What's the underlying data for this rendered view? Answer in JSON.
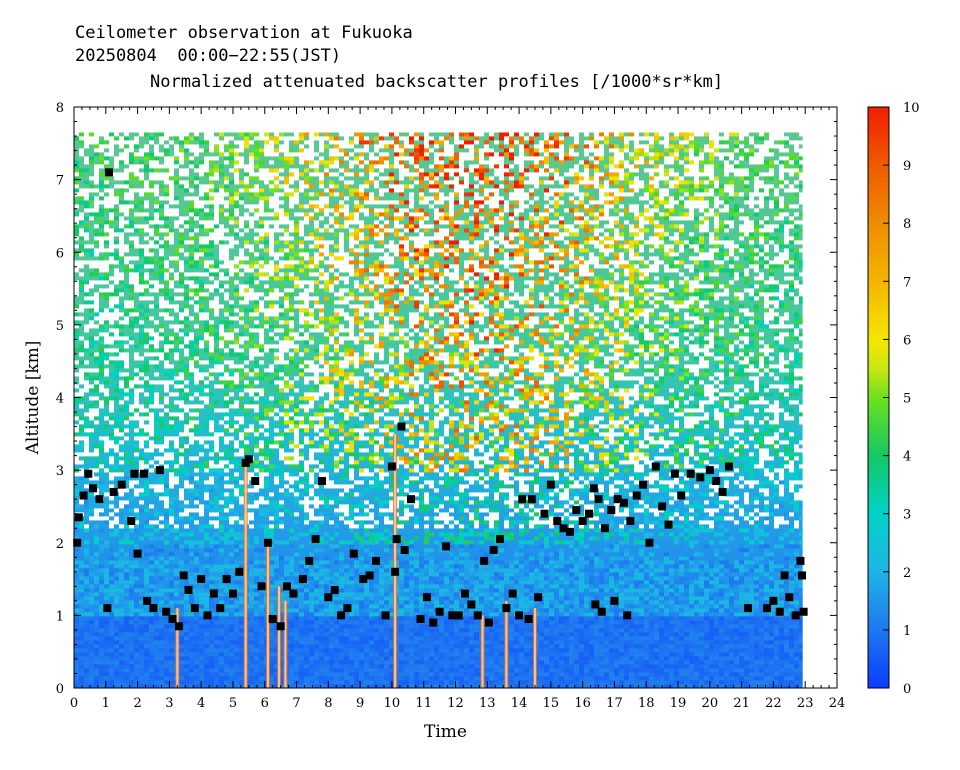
{
  "chart_data": {
    "type": "heatmap",
    "title_lines": [
      "Ceilometer observation at Fukuoka",
      "20250804  00:00−22:55(JST)"
    ],
    "subtitle": "Normalized attenuated backscatter profiles [/1000*sr*km]",
    "xlabel": "Time",
    "ylabel": "Altitude [km]",
    "xlim": [
      0,
      24
    ],
    "ylim": [
      0,
      8
    ],
    "data_time_range": [
      0,
      22.92
    ],
    "data_max_altitude": 7.65,
    "x_ticks": [
      "0",
      "1",
      "2",
      "3",
      "4",
      "5",
      "6",
      "7",
      "8",
      "9",
      "10",
      "11",
      "12",
      "13",
      "14",
      "15",
      "16",
      "17",
      "18",
      "19",
      "20",
      "21",
      "22",
      "23",
      "24"
    ],
    "y_ticks": [
      "0",
      "1",
      "2",
      "3",
      "4",
      "5",
      "6",
      "7",
      "8"
    ],
    "colorbar": {
      "range": [
        0,
        10
      ],
      "ticks": [
        "0",
        "1",
        "2",
        "3",
        "4",
        "5",
        "6",
        "7",
        "8",
        "9",
        "10"
      ],
      "stops": [
        {
          "value": 0,
          "color": "#0a3cff"
        },
        {
          "value": 1,
          "color": "#1f78f0"
        },
        {
          "value": 2,
          "color": "#1fb4e6"
        },
        {
          "value": 3,
          "color": "#00d2c8"
        },
        {
          "value": 4,
          "color": "#14c864"
        },
        {
          "value": 5,
          "color": "#6ee01e"
        },
        {
          "value": 5.5,
          "color": "#c8e614"
        },
        {
          "value": 6,
          "color": "#f5e600"
        },
        {
          "value": 7,
          "color": "#f5b400"
        },
        {
          "value": 8,
          "color": "#f08c00"
        },
        {
          "value": 9,
          "color": "#f05a00"
        },
        {
          "value": 10,
          "color": "#f01e00"
        }
      ]
    },
    "cloud_base_points": [
      {
        "t": 0.1,
        "h": 2.0
      },
      {
        "t": 0.15,
        "h": 2.35
      },
      {
        "t": 0.3,
        "h": 2.65
      },
      {
        "t": 0.45,
        "h": 2.95
      },
      {
        "t": 0.6,
        "h": 2.75
      },
      {
        "t": 0.8,
        "h": 2.6
      },
      {
        "t": 1.05,
        "h": 1.1
      },
      {
        "t": 1.1,
        "h": 7.1
      },
      {
        "t": 1.25,
        "h": 2.7
      },
      {
        "t": 1.5,
        "h": 2.8
      },
      {
        "t": 1.8,
        "h": 2.3
      },
      {
        "t": 1.9,
        "h": 2.95
      },
      {
        "t": 2.0,
        "h": 1.85
      },
      {
        "t": 2.2,
        "h": 2.95
      },
      {
        "t": 2.3,
        "h": 1.2
      },
      {
        "t": 2.5,
        "h": 1.1
      },
      {
        "t": 2.7,
        "h": 3.0
      },
      {
        "t": 2.9,
        "h": 1.05
      },
      {
        "t": 3.1,
        "h": 0.95
      },
      {
        "t": 3.3,
        "h": 0.85
      },
      {
        "t": 3.45,
        "h": 1.55
      },
      {
        "t": 3.6,
        "h": 1.35
      },
      {
        "t": 3.8,
        "h": 1.1
      },
      {
        "t": 4.0,
        "h": 1.5
      },
      {
        "t": 4.2,
        "h": 1.0
      },
      {
        "t": 4.4,
        "h": 1.3
      },
      {
        "t": 4.6,
        "h": 1.1
      },
      {
        "t": 4.8,
        "h": 1.5
      },
      {
        "t": 5.0,
        "h": 1.3
      },
      {
        "t": 5.2,
        "h": 1.6
      },
      {
        "t": 5.4,
        "h": 3.1
      },
      {
        "t": 5.5,
        "h": 3.15
      },
      {
        "t": 5.7,
        "h": 2.85
      },
      {
        "t": 5.9,
        "h": 1.4
      },
      {
        "t": 6.1,
        "h": 2.0
      },
      {
        "t": 6.25,
        "h": 0.95
      },
      {
        "t": 6.5,
        "h": 0.85
      },
      {
        "t": 6.7,
        "h": 1.4
      },
      {
        "t": 6.9,
        "h": 1.3
      },
      {
        "t": 7.2,
        "h": 1.5
      },
      {
        "t": 7.4,
        "h": 1.75
      },
      {
        "t": 7.6,
        "h": 2.05
      },
      {
        "t": 7.8,
        "h": 2.85
      },
      {
        "t": 8.0,
        "h": 1.25
      },
      {
        "t": 8.2,
        "h": 1.35
      },
      {
        "t": 8.4,
        "h": 1.0
      },
      {
        "t": 8.6,
        "h": 1.1
      },
      {
        "t": 8.8,
        "h": 1.85
      },
      {
        "t": 9.1,
        "h": 1.5
      },
      {
        "t": 9.3,
        "h": 1.55
      },
      {
        "t": 9.5,
        "h": 1.75
      },
      {
        "t": 9.8,
        "h": 1.0
      },
      {
        "t": 10.0,
        "h": 3.05
      },
      {
        "t": 10.1,
        "h": 1.6
      },
      {
        "t": 10.15,
        "h": 2.05
      },
      {
        "t": 10.3,
        "h": 3.6
      },
      {
        "t": 10.4,
        "h": 1.9
      },
      {
        "t": 10.6,
        "h": 2.6
      },
      {
        "t": 10.9,
        "h": 0.95
      },
      {
        "t": 11.1,
        "h": 1.25
      },
      {
        "t": 11.3,
        "h": 0.9
      },
      {
        "t": 11.5,
        "h": 1.05
      },
      {
        "t": 11.7,
        "h": 1.95
      },
      {
        "t": 11.9,
        "h": 1.0
      },
      {
        "t": 12.1,
        "h": 1.0
      },
      {
        "t": 12.3,
        "h": 1.3
      },
      {
        "t": 12.5,
        "h": 1.15
      },
      {
        "t": 12.7,
        "h": 1.0
      },
      {
        "t": 12.9,
        "h": 1.75
      },
      {
        "t": 13.05,
        "h": 0.9
      },
      {
        "t": 13.2,
        "h": 1.9
      },
      {
        "t": 13.4,
        "h": 2.05
      },
      {
        "t": 13.6,
        "h": 1.1
      },
      {
        "t": 13.8,
        "h": 1.3
      },
      {
        "t": 14.0,
        "h": 1.0
      },
      {
        "t": 14.1,
        "h": 2.6
      },
      {
        "t": 14.3,
        "h": 0.95
      },
      {
        "t": 14.4,
        "h": 2.6
      },
      {
        "t": 14.6,
        "h": 1.25
      },
      {
        "t": 14.8,
        "h": 2.4
      },
      {
        "t": 15.0,
        "h": 2.8
      },
      {
        "t": 15.2,
        "h": 2.3
      },
      {
        "t": 15.4,
        "h": 2.2
      },
      {
        "t": 15.6,
        "h": 2.15
      },
      {
        "t": 15.8,
        "h": 2.45
      },
      {
        "t": 16.0,
        "h": 2.3
      },
      {
        "t": 16.2,
        "h": 2.4
      },
      {
        "t": 16.35,
        "h": 2.75
      },
      {
        "t": 16.5,
        "h": 2.6
      },
      {
        "t": 16.7,
        "h": 2.2
      },
      {
        "t": 16.9,
        "h": 2.45
      },
      {
        "t": 17.1,
        "h": 2.6
      },
      {
        "t": 17.3,
        "h": 2.55
      },
      {
        "t": 17.5,
        "h": 2.3
      },
      {
        "t": 17.7,
        "h": 2.65
      },
      {
        "t": 17.9,
        "h": 2.8
      },
      {
        "t": 18.1,
        "h": 2.0
      },
      {
        "t": 18.3,
        "h": 3.05
      },
      {
        "t": 18.5,
        "h": 2.5
      },
      {
        "t": 18.7,
        "h": 2.25
      },
      {
        "t": 18.9,
        "h": 2.95
      },
      {
        "t": 19.1,
        "h": 2.65
      },
      {
        "t": 19.4,
        "h": 2.95
      },
      {
        "t": 19.7,
        "h": 2.9
      },
      {
        "t": 20.0,
        "h": 3.0
      },
      {
        "t": 20.2,
        "h": 2.85
      },
      {
        "t": 20.4,
        "h": 2.7
      },
      {
        "t": 20.6,
        "h": 3.05
      },
      {
        "t": 16.4,
        "h": 1.15
      },
      {
        "t": 16.6,
        "h": 1.05
      },
      {
        "t": 17.0,
        "h": 1.2
      },
      {
        "t": 17.4,
        "h": 1.0
      },
      {
        "t": 21.2,
        "h": 1.1
      },
      {
        "t": 21.8,
        "h": 1.1
      },
      {
        "t": 22.0,
        "h": 1.2
      },
      {
        "t": 22.2,
        "h": 1.05
      },
      {
        "t": 22.35,
        "h": 1.55
      },
      {
        "t": 22.5,
        "h": 1.25
      },
      {
        "t": 22.7,
        "h": 1.0
      },
      {
        "t": 22.85,
        "h": 1.75
      },
      {
        "t": 22.9,
        "h": 1.55
      },
      {
        "t": 22.95,
        "h": 1.05
      }
    ]
  }
}
